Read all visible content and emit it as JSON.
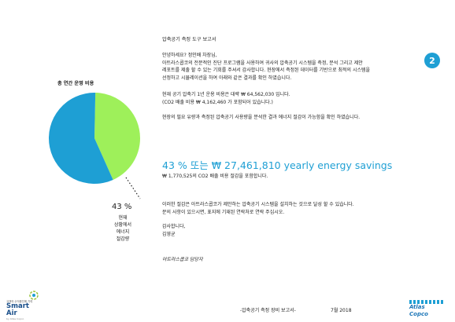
{
  "page_number": "2",
  "title": "압축공기 측정 도구 보고서",
  "intro": [
    "안녕하세요? 정인배 차장님,",
    "아트라스콥코의 전문적인 진단 프로그램을 사용하여 귀사의 압축공기 시스템을 측정, 분석 그리고  제안",
    "레포트를 제출 할 수 있는 기회를 주셔서 감사합니다. 현장에서 측정된 데이터를 기반으로 최적의 시스템을",
    "선정하고 시뮬레이션을 하여 아래와 같은 결과를 확인 하였습니다."
  ],
  "cost": [
    "현재 공기 압축기 1년 운용 비용은 대략 ₩ 64,562,030 입니다.",
    "(CO2 배출 비용 ₩ 4,162,460 가 포함되어 있습니다.)"
  ],
  "analysis": "현장의 필요 유량과 측정된 압축공기 사용량을 분석한 결과 에너지 절감이 가능함을 확인 하였습니다.",
  "headline": "43 % 또는 ₩ 27,461,810 yearly energy savings",
  "subline": "₩ 1,770,525의 CO2 배출 비용 절감을 포함합니다.",
  "closing": [
    "이러한 절감은 아트라스콥코가 제안하는 압축공기 시스템을 설치하는 것으로 달성 할 수 있습니다.",
    "문의 사항이 있으시면, 표지에 기재된 연락처로 연락 주십시오."
  ],
  "thanks": "감사합니다,",
  "signer": "김영균",
  "signer_role": "아트라스콥코 담당자",
  "chart_data": {
    "type": "pie",
    "title": "총 연간 운영 비용",
    "slices": [
      {
        "label": "현재 상황에서 에너지 절감량",
        "value": 43,
        "color": "#9ef05a"
      },
      {
        "label": "",
        "value": 57,
        "color": "#1e9fd4"
      }
    ],
    "annotation_value": "43 %",
    "annotation_label": [
      "현재",
      "상황에서",
      "에너지",
      "절감량"
    ]
  },
  "footer": {
    "center": "-압축공기 측정 장비 보고서-",
    "date": "7월 2018",
    "logo_left_small": "고객의 수익증진에 기여",
    "logo_left_big": "Smart Air",
    "logo_left_sub": "by Atlas Copco",
    "logo_right": "Atlas Copco"
  },
  "colors": {
    "accent": "#1e9fd4",
    "green": "#9ef05a"
  }
}
